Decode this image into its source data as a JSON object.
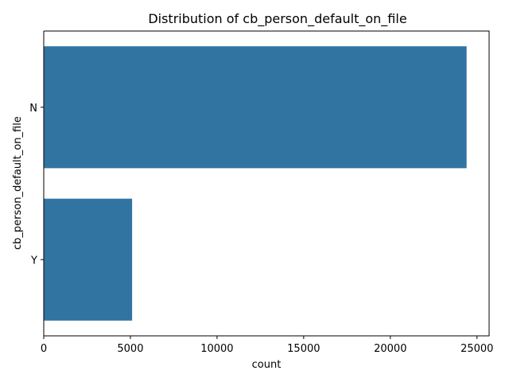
{
  "chart_data": {
    "type": "bar",
    "orientation": "horizontal",
    "title": "Distribution of cb_person_default_on_file",
    "xlabel": "count",
    "ylabel": "cb_person_default_on_file",
    "categories": [
      "N",
      "Y"
    ],
    "values": [
      24400,
      5100
    ],
    "xlim": [
      0,
      25700
    ],
    "xticks": [
      0,
      5000,
      10000,
      15000,
      20000,
      25000
    ],
    "bar_color": "#3274a1",
    "grid": false,
    "legend": "none"
  }
}
